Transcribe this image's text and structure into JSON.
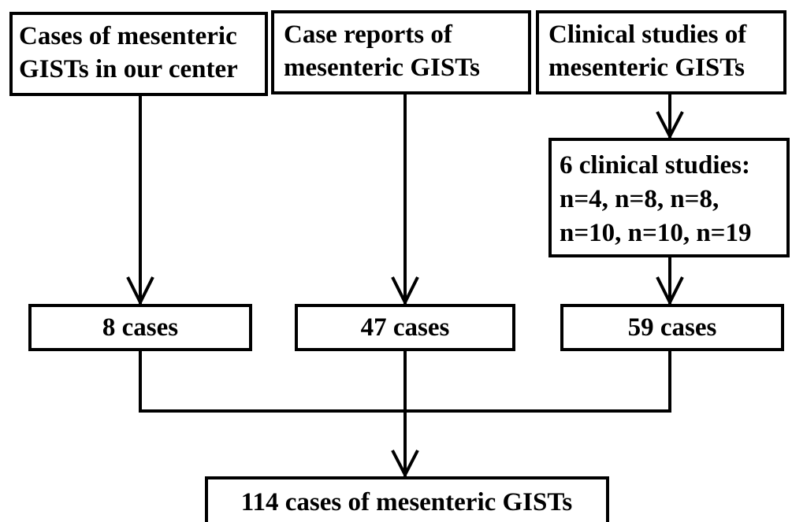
{
  "sources": [
    {
      "lines": [
        "Cases of  mesenteric",
        "GISTs in our center"
      ]
    },
    {
      "lines": [
        "Case reports of",
        "mesenteric GISTs"
      ]
    },
    {
      "lines": [
        "Clinical studies of",
        "mesenteric GISTs"
      ]
    }
  ],
  "studies": {
    "lines": [
      "6 clinical studies:",
      "n=4, n=8, n=8,",
      "n=10, n=10, n=19"
    ]
  },
  "counts": [
    "8 cases",
    "47 cases",
    "59 cases"
  ],
  "total": "114 cases of mesenteric GISTs"
}
